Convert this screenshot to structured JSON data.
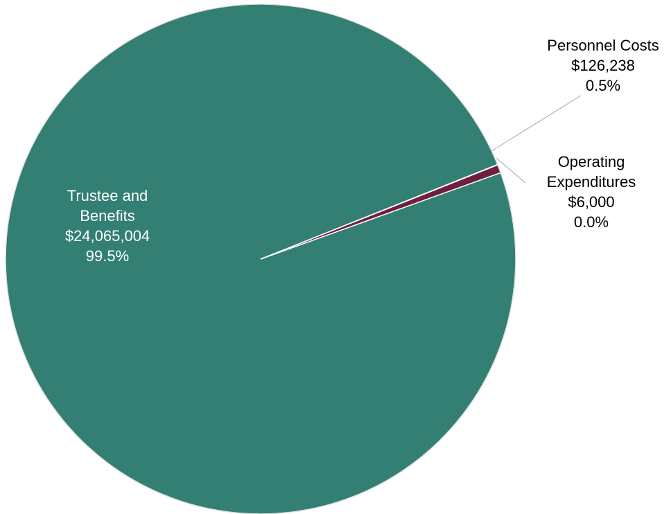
{
  "chart_data": {
    "type": "pie",
    "title": "",
    "legend": "none",
    "slices": [
      {
        "key": "trustee",
        "lines": [
          "Trustee and",
          "Benefits",
          "$24,065,004",
          "99.5%"
        ],
        "value": 24065004,
        "percent": "99.5%",
        "color": "#337f73",
        "label_placement": "inside",
        "label_color": "#ffffff"
      },
      {
        "key": "operating",
        "lines": [
          "Operating",
          "Expenditures",
          "$6,000",
          "0.0%"
        ],
        "value": 6000,
        "percent": "0.0%",
        "color": "#e8e8e8",
        "label_placement": "outside",
        "label_color": "#000000"
      },
      {
        "key": "personnel",
        "lines": [
          "Personnel Costs",
          "$126,238",
          "0.5%"
        ],
        "value": 126238,
        "percent": "0.5%",
        "color": "#6e1f3f",
        "label_placement": "outside",
        "label_color": "#000000"
      }
    ]
  }
}
